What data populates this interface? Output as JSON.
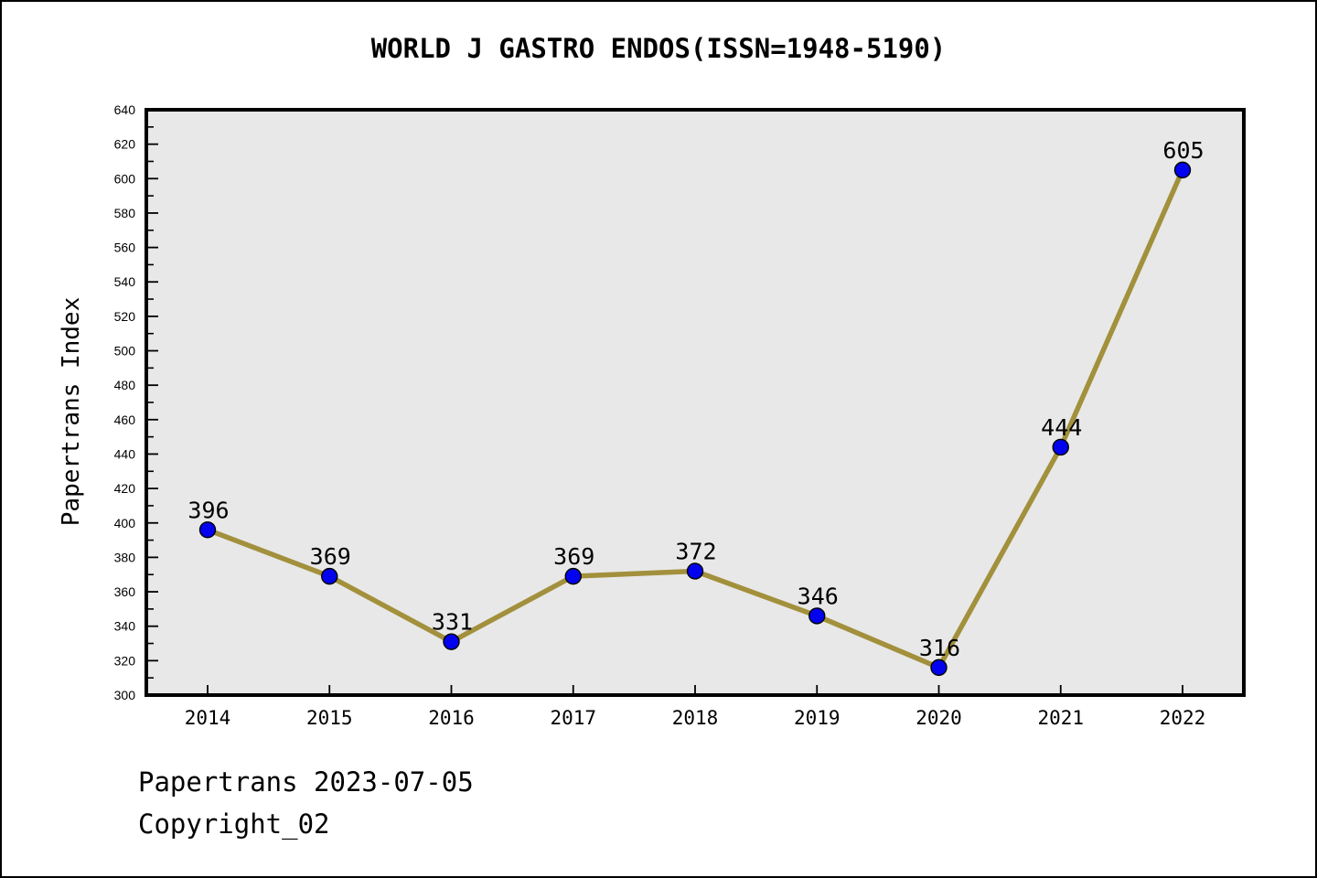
{
  "figure": {
    "footer_line1": "Papertrans 2023-07-05",
    "footer_line2": "Copyright_02"
  },
  "chart_data": {
    "type": "line",
    "title": "WORLD J GASTRO ENDOS(ISSN=1948-5190)",
    "xlabel": "",
    "ylabel": "Papertrans Index",
    "categories": [
      2014,
      2015,
      2016,
      2017,
      2018,
      2019,
      2020,
      2021,
      2022
    ],
    "values": [
      396,
      369,
      331,
      369,
      372,
      346,
      316,
      444,
      605
    ],
    "ylim": [
      300,
      640
    ],
    "y_major_step": 20,
    "y_minor_step": 10,
    "grid": false,
    "legend": "none",
    "line_color": "#a2903c",
    "marker_color": "#0202ee",
    "marker_edge_color": "#000000",
    "plot_bg_color": "#e8e8e8",
    "spine_color": "#000000"
  }
}
